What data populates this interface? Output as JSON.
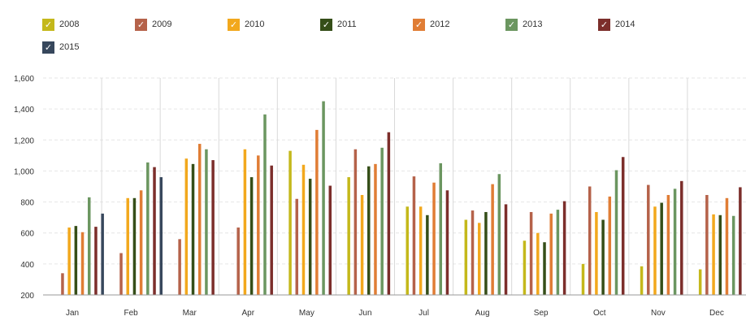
{
  "chart_data": {
    "type": "bar",
    "title": "",
    "xlabel": "",
    "ylabel": "",
    "ylim": [
      200,
      1600
    ],
    "yticks": [
      "200",
      "400",
      "600",
      "800",
      "1,000",
      "1,200",
      "1,400",
      "1,600"
    ],
    "ytick_values": [
      200,
      400,
      600,
      800,
      1000,
      1200,
      1400,
      1600
    ],
    "grid": true,
    "legend_position": "top-left",
    "categories": [
      "Jan",
      "Feb",
      "Mar",
      "Apr",
      "May",
      "Jun",
      "Jul",
      "Aug",
      "Sep",
      "Oct",
      "Nov",
      "Dec"
    ],
    "series": [
      {
        "name": "2008",
        "color": "#c4b81b",
        "values": [
          null,
          null,
          null,
          null,
          1130,
          960,
          770,
          685,
          550,
          400,
          385,
          365
        ]
      },
      {
        "name": "2009",
        "color": "#b5624a",
        "values": [
          340,
          470,
          560,
          635,
          820,
          1140,
          965,
          745,
          735,
          900,
          910,
          845
        ]
      },
      {
        "name": "2010",
        "color": "#f2a81d",
        "values": [
          635,
          825,
          1080,
          1140,
          1040,
          845,
          770,
          665,
          600,
          735,
          770,
          720
        ]
      },
      {
        "name": "2011",
        "color": "#354e18",
        "values": [
          645,
          825,
          1045,
          960,
          950,
          1030,
          715,
          735,
          540,
          685,
          795,
          715
        ]
      },
      {
        "name": "2012",
        "color": "#e07d35",
        "values": [
          605,
          875,
          1175,
          1100,
          1265,
          1045,
          925,
          915,
          725,
          835,
          845,
          825
        ]
      },
      {
        "name": "2013",
        "color": "#6b9660",
        "values": [
          830,
          1055,
          1140,
          1365,
          1450,
          1150,
          1050,
          980,
          750,
          1005,
          885,
          710
        ]
      },
      {
        "name": "2014",
        "color": "#7c2e2b",
        "values": [
          640,
          1025,
          1070,
          1035,
          905,
          1250,
          875,
          785,
          805,
          1090,
          935,
          895
        ]
      },
      {
        "name": "2015",
        "color": "#37475c",
        "values": [
          725,
          960,
          null,
          null,
          null,
          null,
          null,
          null,
          null,
          null,
          null,
          null
        ]
      }
    ]
  }
}
